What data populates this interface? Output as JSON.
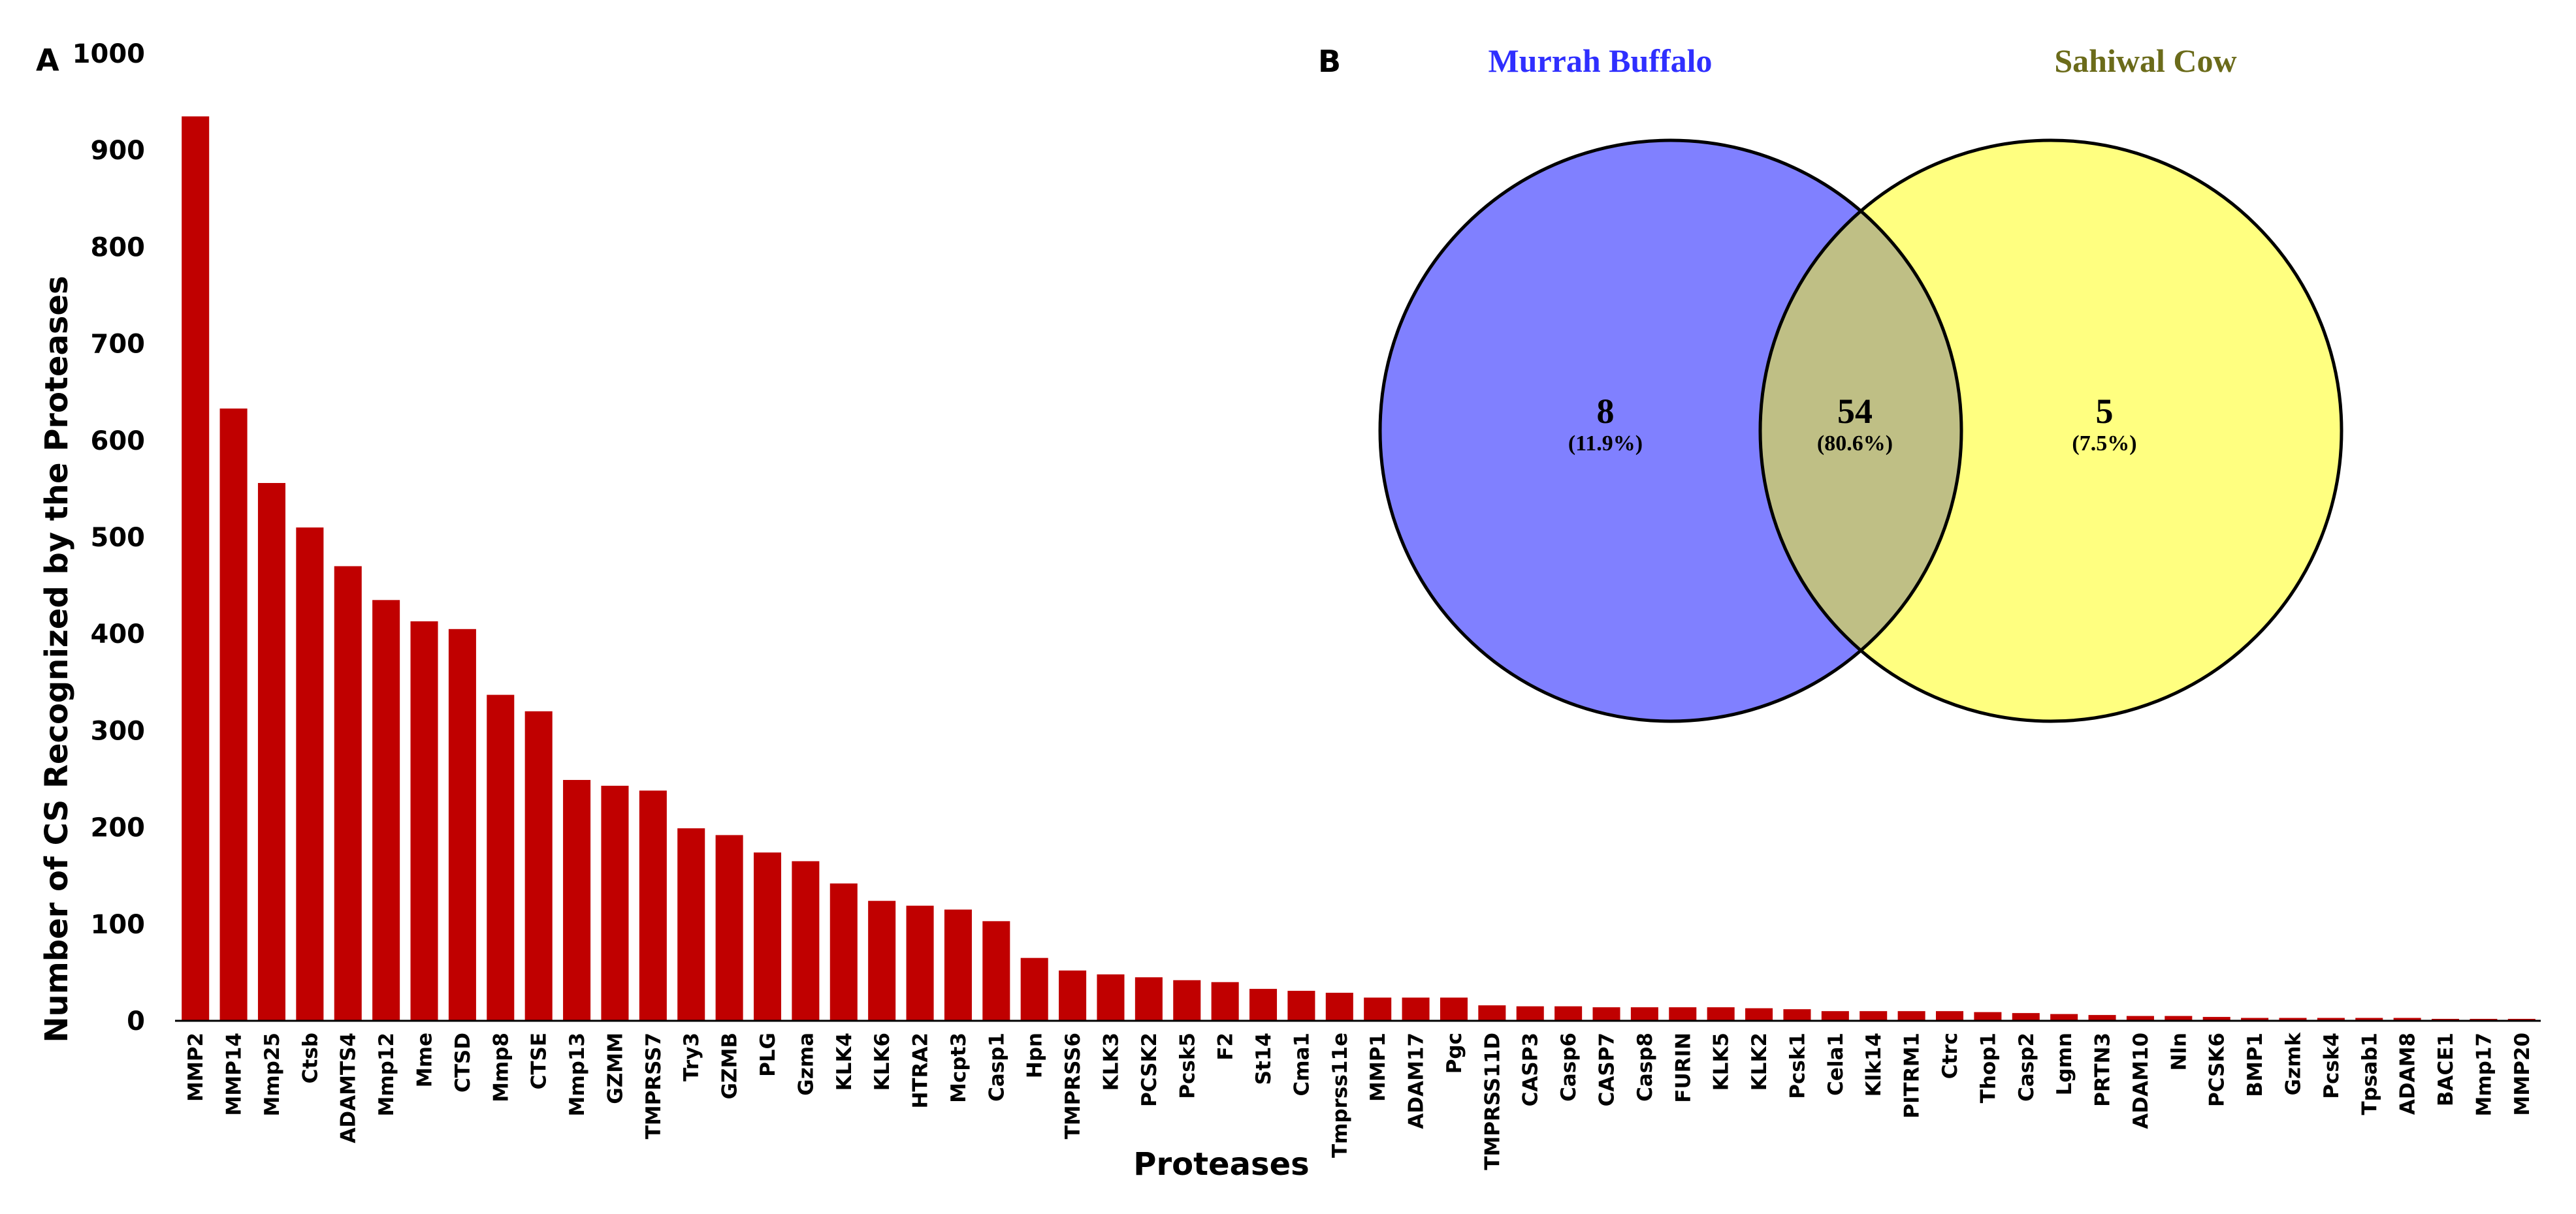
{
  "chart_data": [
    {
      "panel": "A",
      "type": "bar",
      "title": "",
      "xlabel": "Proteases",
      "ylabel": "Number of CS Recognized by the Proteases",
      "ylim": [
        0,
        1000
      ],
      "yticks": [
        "0",
        "100",
        "200",
        "300",
        "400",
        "500",
        "600",
        "700",
        "800",
        "900",
        "1000"
      ],
      "bar_color": "#c00000",
      "grid": false,
      "categories": [
        "MMP2",
        "MMP14",
        "Mmp25",
        "Ctsb",
        "ADAMTS4",
        "Mmp12",
        "Mme",
        "CTSD",
        "Mmp8",
        "CTSE",
        "Mmp13",
        "GZMM",
        "TMPRSS7",
        "Try3",
        "GZMB",
        "PLG",
        "Gzma",
        "KLK4",
        "KLK6",
        "HTRA2",
        "Mcpt3",
        "Casp1",
        "Hpn",
        "TMPRSS6",
        "KLK3",
        "PCSK2",
        "Pcsk5",
        "F2",
        "St14",
        "Cma1",
        "Tmprss11e",
        "MMP1",
        "ADAM17",
        "Pgc",
        "TMPRSS11D",
        "CASP3",
        "Casp6",
        "CASP7",
        "Casp8",
        "FURIN",
        "KLK5",
        "KLK2",
        "Pcsk1",
        "Cela1",
        "Klk14",
        "PITRM1",
        "Ctrc",
        "Thop1",
        "Casp2",
        "Lgmn",
        "PRTN3",
        "ADAM10",
        "Nln",
        "PCSK6",
        "BMP1",
        "Gzmk",
        "Pcsk4",
        "Tpsab1",
        "ADAM8",
        "BACE1",
        "Mmp17",
        "MMP20"
      ],
      "values": [
        935,
        633,
        556,
        510,
        470,
        435,
        413,
        405,
        337,
        320,
        249,
        243,
        238,
        199,
        192,
        174,
        165,
        142,
        124,
        119,
        115,
        103,
        65,
        52,
        48,
        45,
        42,
        40,
        33,
        31,
        29,
        24,
        24,
        24,
        16,
        15,
        15,
        14,
        14,
        14,
        14,
        13,
        12,
        10,
        10,
        10,
        10,
        9,
        8,
        7,
        6,
        5,
        5,
        4,
        3,
        3,
        3,
        3,
        3,
        2,
        2,
        2
      ]
    },
    {
      "panel": "B",
      "type": "venn",
      "sets": [
        {
          "name": "Murrah Buffalo",
          "color": "#8080ff",
          "title_color": "#2f2fff"
        },
        {
          "name": "Sahiwal Cow",
          "color": "#ffff80",
          "title_color": "#6b6b1a"
        }
      ],
      "overlap_color": "#bfbf85",
      "regions": [
        {
          "region": "Murrah Buffalo only",
          "count": "8",
          "percent": "(11.9%)"
        },
        {
          "region": "shared",
          "count": "54",
          "percent": "(80.6%)"
        },
        {
          "region": "Sahiwal Cow only",
          "count": "5",
          "percent": "(7.5%)"
        }
      ]
    }
  ]
}
